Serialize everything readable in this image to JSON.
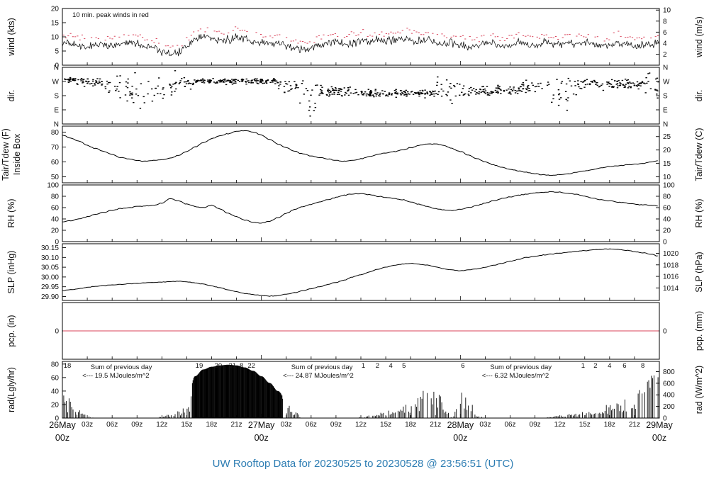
{
  "title": "UW Rooftop Data for 20230525  to  20230528 @ 23:56:51  (UTC)",
  "colors": {
    "red": "#d9435a",
    "date_red": "#e25e72",
    "purple": "#9b33cc",
    "title": "#2d7db3",
    "line": "#000000"
  },
  "x_axis": {
    "hour_labels": [
      "03z",
      "06z",
      "09z",
      "12z",
      "15z",
      "18z",
      "21z"
    ],
    "day_labels": [
      {
        "date": "26May",
        "z": "00z"
      },
      {
        "date": "27May",
        "z": "00z"
      },
      {
        "date": "28May",
        "z": "00z"
      },
      {
        "date": "29May",
        "z": "00z"
      }
    ]
  },
  "chart_data": {
    "type": "meteogram",
    "x_hours_range": [
      0,
      72
    ],
    "panels": [
      {
        "id": "wind",
        "type": "wind",
        "left_label": "wind (kts)",
        "right_label": "wind (m/s)",
        "ylim": [
          0,
          20
        ],
        "left_ticks": [
          {
            "v": 0,
            "label": "0"
          },
          {
            "v": 5,
            "label": "5"
          },
          {
            "v": 10,
            "label": "10"
          },
          {
            "v": 15,
            "label": "15"
          },
          {
            "v": 20,
            "label": "20"
          }
        ],
        "right_ticks": [
          {
            "v": 3.89,
            "label": "2"
          },
          {
            "v": 7.78,
            "label": "4"
          },
          {
            "v": 11.66,
            "label": "6"
          },
          {
            "v": 15.55,
            "label": "8"
          },
          {
            "v": 19.44,
            "label": "10"
          }
        ],
        "annotation": "10 min. peak winds in red",
        "peak_offset": 2.6,
        "noise": 1.1,
        "values": [
          8,
          7.5,
          7,
          6.5,
          7,
          7,
          6.5,
          7,
          8,
          7.5,
          6.5,
          6,
          5,
          4,
          4.5,
          6.5,
          9,
          10,
          9.5,
          8.5,
          9,
          10,
          9.5,
          8.5,
          8,
          7.5,
          8,
          7,
          6,
          5.5,
          6,
          7,
          8,
          8,
          7.5,
          8,
          9,
          8.5,
          9,
          8.5,
          9,
          9.5,
          9,
          8.5,
          9,
          8,
          7.5,
          8,
          7,
          6.5,
          7,
          8,
          7.5,
          6.5,
          7,
          8,
          7.5,
          7,
          8,
          7.5,
          7,
          8,
          7.5,
          8,
          7.5,
          6.5,
          7,
          8,
          7.5,
          6.5,
          7,
          7.5,
          8
        ]
      },
      {
        "id": "dir",
        "type": "scatter",
        "left_label": "dir.",
        "right_label": "dir.",
        "ylim": [
          0,
          360
        ],
        "left_ticks": [
          {
            "v": 360,
            "label": "N"
          },
          {
            "v": 270,
            "label": "W"
          },
          {
            "v": 180,
            "label": "S"
          },
          {
            "v": 90,
            "label": "E"
          },
          {
            "v": 0,
            "label": "N"
          }
        ],
        "right_ticks": [
          {
            "v": 360,
            "label": "N"
          },
          {
            "v": 270,
            "label": "W"
          },
          {
            "v": 180,
            "label": "S"
          },
          {
            "v": 90,
            "label": "E"
          },
          {
            "v": 0,
            "label": "N"
          }
        ],
        "segments": [
          [
            0,
            1.5,
            280,
            30,
            14
          ],
          [
            1.5,
            5,
            268,
            50,
            12
          ],
          [
            5,
            8,
            240,
            150,
            8
          ],
          [
            8,
            11,
            190,
            200,
            7
          ],
          [
            11,
            14,
            240,
            170,
            8
          ],
          [
            14,
            16,
            262,
            70,
            10
          ],
          [
            16,
            26,
            272,
            30,
            14
          ],
          [
            26,
            28.5,
            245,
            80,
            10
          ],
          [
            28.5,
            31,
            180,
            200,
            7
          ],
          [
            31,
            36,
            205,
            60,
            12
          ],
          [
            36,
            45,
            196,
            40,
            14
          ],
          [
            45,
            49,
            215,
            140,
            8
          ],
          [
            49,
            55,
            212,
            55,
            12
          ],
          [
            55,
            58,
            228,
            70,
            11
          ],
          [
            58,
            62,
            200,
            180,
            7
          ],
          [
            62,
            70,
            252,
            55,
            12
          ],
          [
            70,
            72,
            250,
            150,
            9
          ]
        ]
      },
      {
        "id": "temp",
        "type": "line",
        "left_label": "Tair/Tdew (F)",
        "left_label2": "Inside Box",
        "right_label": "Tair/Tdew (C)",
        "ylim": [
          46,
          84
        ],
        "noise": 0.2,
        "left_ticks": [
          {
            "v": 50,
            "label": "50"
          },
          {
            "v": 60,
            "label": "60"
          },
          {
            "v": 70,
            "label": "70"
          },
          {
            "v": 80,
            "label": "80"
          }
        ],
        "right_ticks": [
          {
            "v": 50,
            "label": "10"
          },
          {
            "v": 59,
            "label": "15"
          },
          {
            "v": 68,
            "label": "20"
          },
          {
            "v": 77,
            "label": "25"
          }
        ],
        "values": [
          78,
          76,
          74,
          71,
          69,
          67,
          65,
          63,
          62,
          61,
          60.5,
          61,
          61.5,
          62.5,
          64.5,
          67,
          70,
          73,
          75.5,
          77.5,
          79,
          80.5,
          81,
          80,
          78,
          75,
          72,
          69.5,
          67,
          65.5,
          64,
          63,
          62,
          61,
          60.5,
          61,
          62,
          63.5,
          65,
          66,
          67,
          68,
          69.5,
          71,
          72,
          72,
          71,
          69,
          67,
          64.5,
          62,
          60,
          58,
          56.5,
          55,
          54,
          53,
          52,
          51.5,
          51,
          51.5,
          52,
          53,
          54,
          55,
          56,
          57,
          57.5,
          58,
          58.5,
          59,
          60,
          61
        ]
      },
      {
        "id": "rh",
        "type": "line",
        "left_label": "RH (%)",
        "right_label": "RH (%)",
        "ylim": [
          0,
          100
        ],
        "noise": 0.6,
        "left_ticks": [
          {
            "v": 0,
            "label": "0"
          },
          {
            "v": 20,
            "label": "20"
          },
          {
            "v": 40,
            "label": "40"
          },
          {
            "v": 60,
            "label": "60"
          },
          {
            "v": 80,
            "label": "80"
          },
          {
            "v": 100,
            "label": "100"
          }
        ],
        "right_ticks": [
          {
            "v": 0,
            "label": "0"
          },
          {
            "v": 20,
            "label": "20"
          },
          {
            "v": 40,
            "label": "40"
          },
          {
            "v": 60,
            "label": "60"
          },
          {
            "v": 80,
            "label": "80"
          },
          {
            "v": 100,
            "label": "100"
          }
        ],
        "values": [
          35,
          37,
          40,
          44,
          48,
          52,
          55,
          58,
          60,
          62,
          63,
          64,
          68,
          76,
          72,
          66,
          62,
          60,
          64,
          58,
          50,
          44,
          38,
          34,
          33,
          36,
          42,
          50,
          57,
          62,
          66,
          70,
          74,
          78,
          82,
          84,
          85,
          83,
          80,
          78,
          76,
          74,
          70,
          66,
          62,
          58,
          56,
          55,
          57,
          60,
          64,
          68,
          72,
          76,
          79,
          82,
          84,
          86,
          87,
          88,
          87,
          85,
          83,
          80,
          77,
          74,
          72,
          70,
          68,
          66,
          65,
          64,
          63
        ]
      },
      {
        "id": "slp",
        "type": "line",
        "left_label": "SLP (inHg)",
        "right_label": "SLP (hPa)",
        "ylim": [
          29.88,
          30.17
        ],
        "noise": 0.0012,
        "left_ticks": [
          {
            "v": 29.9,
            "label": "29.90"
          },
          {
            "v": 29.95,
            "label": "29.95"
          },
          {
            "v": 30.0,
            "label": "30.00"
          },
          {
            "v": 30.05,
            "label": "30.05"
          },
          {
            "v": 30.1,
            "label": "30.10"
          },
          {
            "v": 30.15,
            "label": "30.15"
          }
        ],
        "right_ticks": [
          {
            "v": 29.944,
            "label": "1014"
          },
          {
            "v": 30.003,
            "label": "1016"
          },
          {
            "v": 30.062,
            "label": "1018"
          },
          {
            "v": 30.121,
            "label": "1020"
          }
        ],
        "values": [
          29.93,
          29.935,
          29.94,
          29.947,
          29.952,
          29.956,
          29.96,
          29.962,
          29.965,
          29.967,
          29.97,
          29.972,
          29.975,
          29.976,
          29.978,
          29.975,
          29.97,
          29.964,
          29.955,
          29.945,
          29.935,
          29.925,
          29.916,
          29.91,
          29.905,
          29.902,
          29.905,
          29.912,
          29.92,
          29.93,
          29.94,
          29.95,
          29.962,
          29.972,
          29.985,
          30.0,
          30.012,
          30.025,
          30.04,
          30.05,
          30.06,
          30.066,
          30.07,
          30.066,
          30.06,
          30.052,
          30.042,
          30.036,
          30.032,
          30.036,
          30.042,
          30.05,
          30.06,
          30.07,
          30.08,
          30.09,
          30.1,
          30.106,
          30.112,
          30.117,
          30.122,
          30.127,
          30.131,
          30.135,
          30.139,
          30.141,
          30.144,
          30.141,
          30.136,
          30.13,
          30.124,
          30.116,
          30.106
        ]
      },
      {
        "id": "pcp",
        "type": "flat",
        "left_label": "pcp. (in)",
        "right_label": "pcp. (mm)",
        "ylim": [
          -0.5,
          0.5
        ],
        "line_value": 0,
        "left_ticks": [
          {
            "v": 0,
            "label": "0"
          }
        ],
        "right_ticks": [
          {
            "v": 0,
            "label": "0"
          }
        ]
      },
      {
        "id": "rad",
        "type": "rad",
        "left_label": "rad(Lgly/hr)",
        "right_label": "rad (W/m^2)",
        "ylim": [
          0,
          84
        ],
        "left_ticks": [
          {
            "v": 0,
            "label": "0"
          },
          {
            "v": 20,
            "label": "20"
          },
          {
            "v": 40,
            "label": "40"
          },
          {
            "v": 60,
            "label": "60"
          },
          {
            "v": 80,
            "label": "80"
          }
        ],
        "right_ticks": [
          {
            "v": 0,
            "label": "0"
          },
          {
            "v": 17.2,
            "label": "200"
          },
          {
            "v": 34.4,
            "label": "400"
          },
          {
            "v": 51.6,
            "label": "600"
          },
          {
            "v": 68.8,
            "label": "800"
          }
        ],
        "values": [
          42,
          28,
          12,
          4,
          0,
          0,
          0,
          0,
          0,
          0,
          0,
          0,
          2,
          6,
          12,
          18,
          62,
          72,
          76,
          78,
          79,
          78,
          75,
          70,
          62,
          52,
          40,
          26,
          10,
          0,
          0,
          0,
          0,
          0,
          0,
          0,
          2,
          4,
          7,
          10,
          14,
          20,
          26,
          34,
          48,
          66,
          18,
          2,
          40,
          30,
          6,
          0,
          0,
          0,
          0,
          0,
          0,
          0,
          0,
          2,
          4,
          6,
          8,
          10,
          13,
          17,
          22,
          27,
          33,
          42,
          52,
          64,
          74
        ],
        "smooth_regions": [
          [
            15.6,
            26.5
          ]
        ],
        "marks": [
          {
            "t": 0.6,
            "label": "18"
          },
          {
            "t": 16.5,
            "label": "19"
          },
          {
            "t": 18.8,
            "label": "20"
          },
          {
            "t": 20.5,
            "label": "21"
          },
          {
            "t": 21.6,
            "label": "8"
          },
          {
            "t": 22.8,
            "label": "22"
          },
          {
            "t": 36.3,
            "label": "1"
          },
          {
            "t": 38.0,
            "label": "2"
          },
          {
            "t": 39.6,
            "label": "4"
          },
          {
            "t": 41.2,
            "label": "5"
          },
          {
            "t": 48.3,
            "label": "6"
          },
          {
            "t": 62.8,
            "label": "1"
          },
          {
            "t": 64.3,
            "label": "2"
          },
          {
            "t": 66.0,
            "label": "4"
          },
          {
            "t": 67.8,
            "label": "6"
          },
          {
            "t": 70.0,
            "label": "8"
          }
        ],
        "sum_annotations": [
          {
            "t": 3.4,
            "lines": [
              "Sum of previous day",
              "<--- 19.5 MJoules/m^2"
            ]
          },
          {
            "t": 27.6,
            "lines": [
              "Sum of previous day",
              "<--- 24.87 MJoules/m^2"
            ]
          },
          {
            "t": 51.6,
            "lines": [
              "Sum of previous day",
              "<--- 6.32 MJoules/m^2"
            ]
          }
        ]
      }
    ]
  }
}
